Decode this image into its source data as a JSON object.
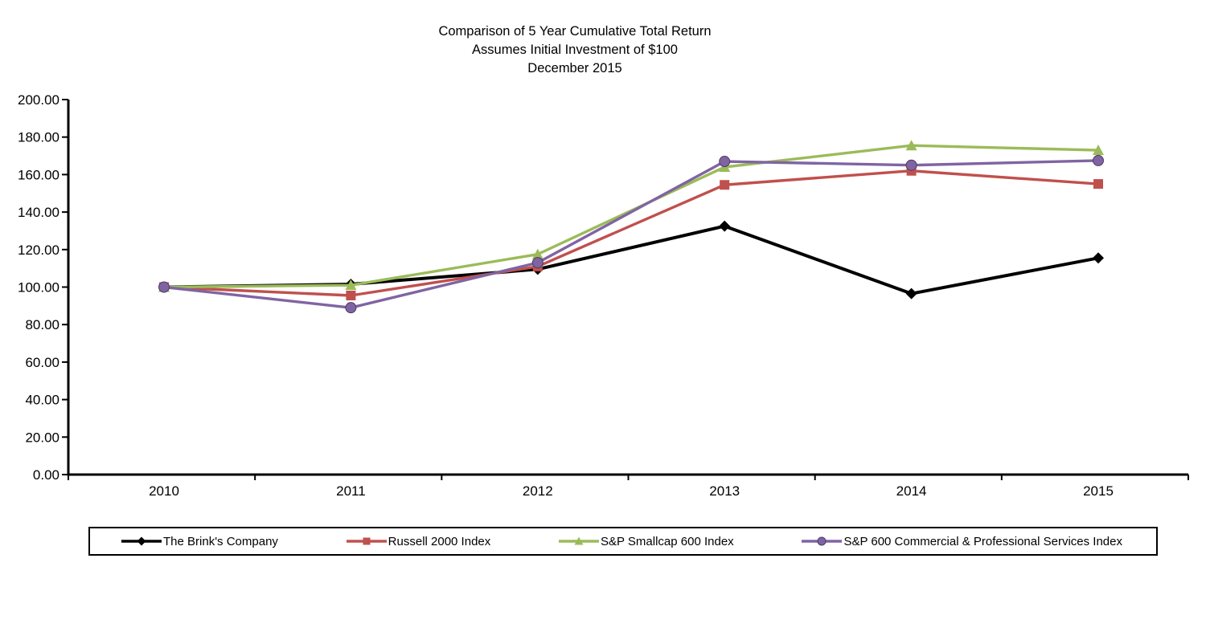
{
  "chart_data": {
    "type": "line",
    "title": "Comparison of 5 Year Cumulative Total Return",
    "subtitle1": "Assumes Initial Investment of $100",
    "subtitle2": "December 2015",
    "categories": [
      "2010",
      "2011",
      "2012",
      "2013",
      "2014",
      "2015"
    ],
    "ylim": [
      0,
      200
    ],
    "ytick_step": 20,
    "ytick_labels": [
      "0.00",
      "20.00",
      "40.00",
      "60.00",
      "80.00",
      "100.00",
      "120.00",
      "140.00",
      "160.00",
      "180.00",
      "200.00"
    ],
    "grid": false,
    "legend_position": "bottom",
    "series": [
      {
        "name": "The Brink's Company",
        "color": "#000000",
        "marker": "diamond",
        "values": [
          100.0,
          101.5,
          109.5,
          132.5,
          96.5,
          115.5
        ]
      },
      {
        "name": "Russell 2000 Index",
        "color": "#C0504D",
        "marker": "square",
        "values": [
          100.0,
          95.5,
          111.0,
          154.5,
          162.0,
          155.0
        ]
      },
      {
        "name": "S&P Smallcap 600 Index",
        "color": "#9BBB59",
        "marker": "triangle",
        "values": [
          100.0,
          101.0,
          117.5,
          164.0,
          175.5,
          173.0
        ]
      },
      {
        "name": "S&P 600 Commercial & Professional Services Index",
        "color": "#8064A2",
        "marker": "circle",
        "values": [
          100.0,
          89.0,
          113.0,
          167.0,
          165.0,
          167.5
        ]
      }
    ]
  }
}
